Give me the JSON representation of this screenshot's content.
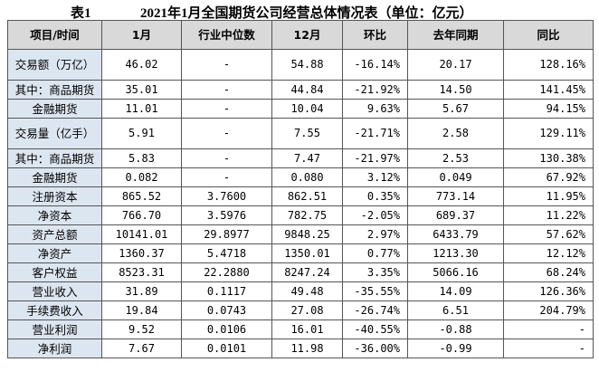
{
  "header": {
    "label": "表1",
    "title": "2021年1月全国期货公司经营总体情况表（单位：亿元）"
  },
  "table": {
    "columns": [
      "项目/时间",
      "1月",
      "行业中位数",
      "12月",
      "环比",
      "去年同期",
      "同比"
    ],
    "rows": [
      [
        "交易额（万亿）",
        "46.02",
        "-",
        "54.88",
        "-16.14%",
        "20.17",
        "128.16%"
      ],
      [
        "其中：商品期货",
        "35.01",
        "-",
        "44.84",
        "-21.92%",
        "14.50",
        "141.45%"
      ],
      [
        "金融期货",
        "11.01",
        "-",
        "10.04",
        "9.63%",
        "5.67",
        "94.15%"
      ],
      [
        "交易量（亿手）",
        "5.91",
        "-",
        "7.55",
        "-21.71%",
        "2.58",
        "129.11%"
      ],
      [
        "其中：商品期货",
        "5.83",
        "-",
        "7.47",
        "-21.97%",
        "2.53",
        "130.38%"
      ],
      [
        "金融期货",
        "0.082",
        "-",
        "0.080",
        "3.12%",
        "0.049",
        "67.92%"
      ],
      [
        "注册资本",
        "865.52",
        "3.7600",
        "862.51",
        "0.35%",
        "773.14",
        "11.95%"
      ],
      [
        "净资本",
        "766.70",
        "3.5976",
        "782.75",
        "-2.05%",
        "689.37",
        "11.22%"
      ],
      [
        "资产总额",
        "10141.01",
        "29.8977",
        "9848.25",
        "2.97%",
        "6433.79",
        "57.62%"
      ],
      [
        "净资产",
        "1360.37",
        "5.4718",
        "1350.01",
        "0.77%",
        "1213.30",
        "12.12%"
      ],
      [
        "客户权益",
        "8523.31",
        "22.2880",
        "8247.24",
        "3.35%",
        "5066.16",
        "68.24%"
      ],
      [
        "营业收入",
        "31.89",
        "0.1117",
        "49.48",
        "-35.55%",
        "14.09",
        "126.36%"
      ],
      [
        "手续费收入",
        "19.84",
        "0.0743",
        "27.08",
        "-26.74%",
        "6.51",
        "204.79%"
      ],
      [
        "营业利润",
        "9.52",
        "0.0106",
        "16.01",
        "-40.55%",
        "-0.88",
        "-"
      ],
      [
        "净利润",
        "7.67",
        "0.0101",
        "11.98",
        "-36.00%",
        "-0.99",
        "-"
      ]
    ]
  }
}
